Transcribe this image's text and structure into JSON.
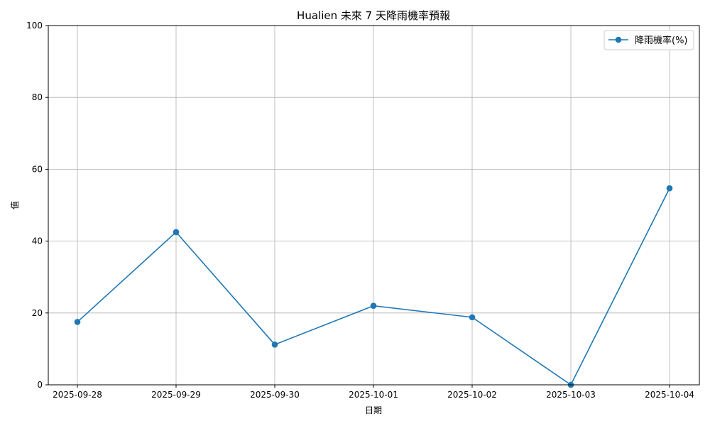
{
  "chart_data": {
    "type": "line",
    "title": "Hualien 未來 7 天降雨機率預報",
    "xlabel": "日期",
    "ylabel": "值",
    "categories": [
      "2025-09-28",
      "2025-09-29",
      "2025-09-30",
      "2025-10-01",
      "2025-10-02",
      "2025-10-03",
      "2025-10-04"
    ],
    "series": [
      {
        "name": "降雨機率(%)",
        "values": [
          17.5,
          42.5,
          11.2,
          22.0,
          18.8,
          0.0,
          54.7
        ],
        "color": "#1f77b4"
      }
    ],
    "ylim": [
      0,
      100
    ],
    "yticks": [
      "0",
      "20",
      "40",
      "60",
      "80",
      "100"
    ],
    "grid": true,
    "legend_position": "top-right"
  }
}
